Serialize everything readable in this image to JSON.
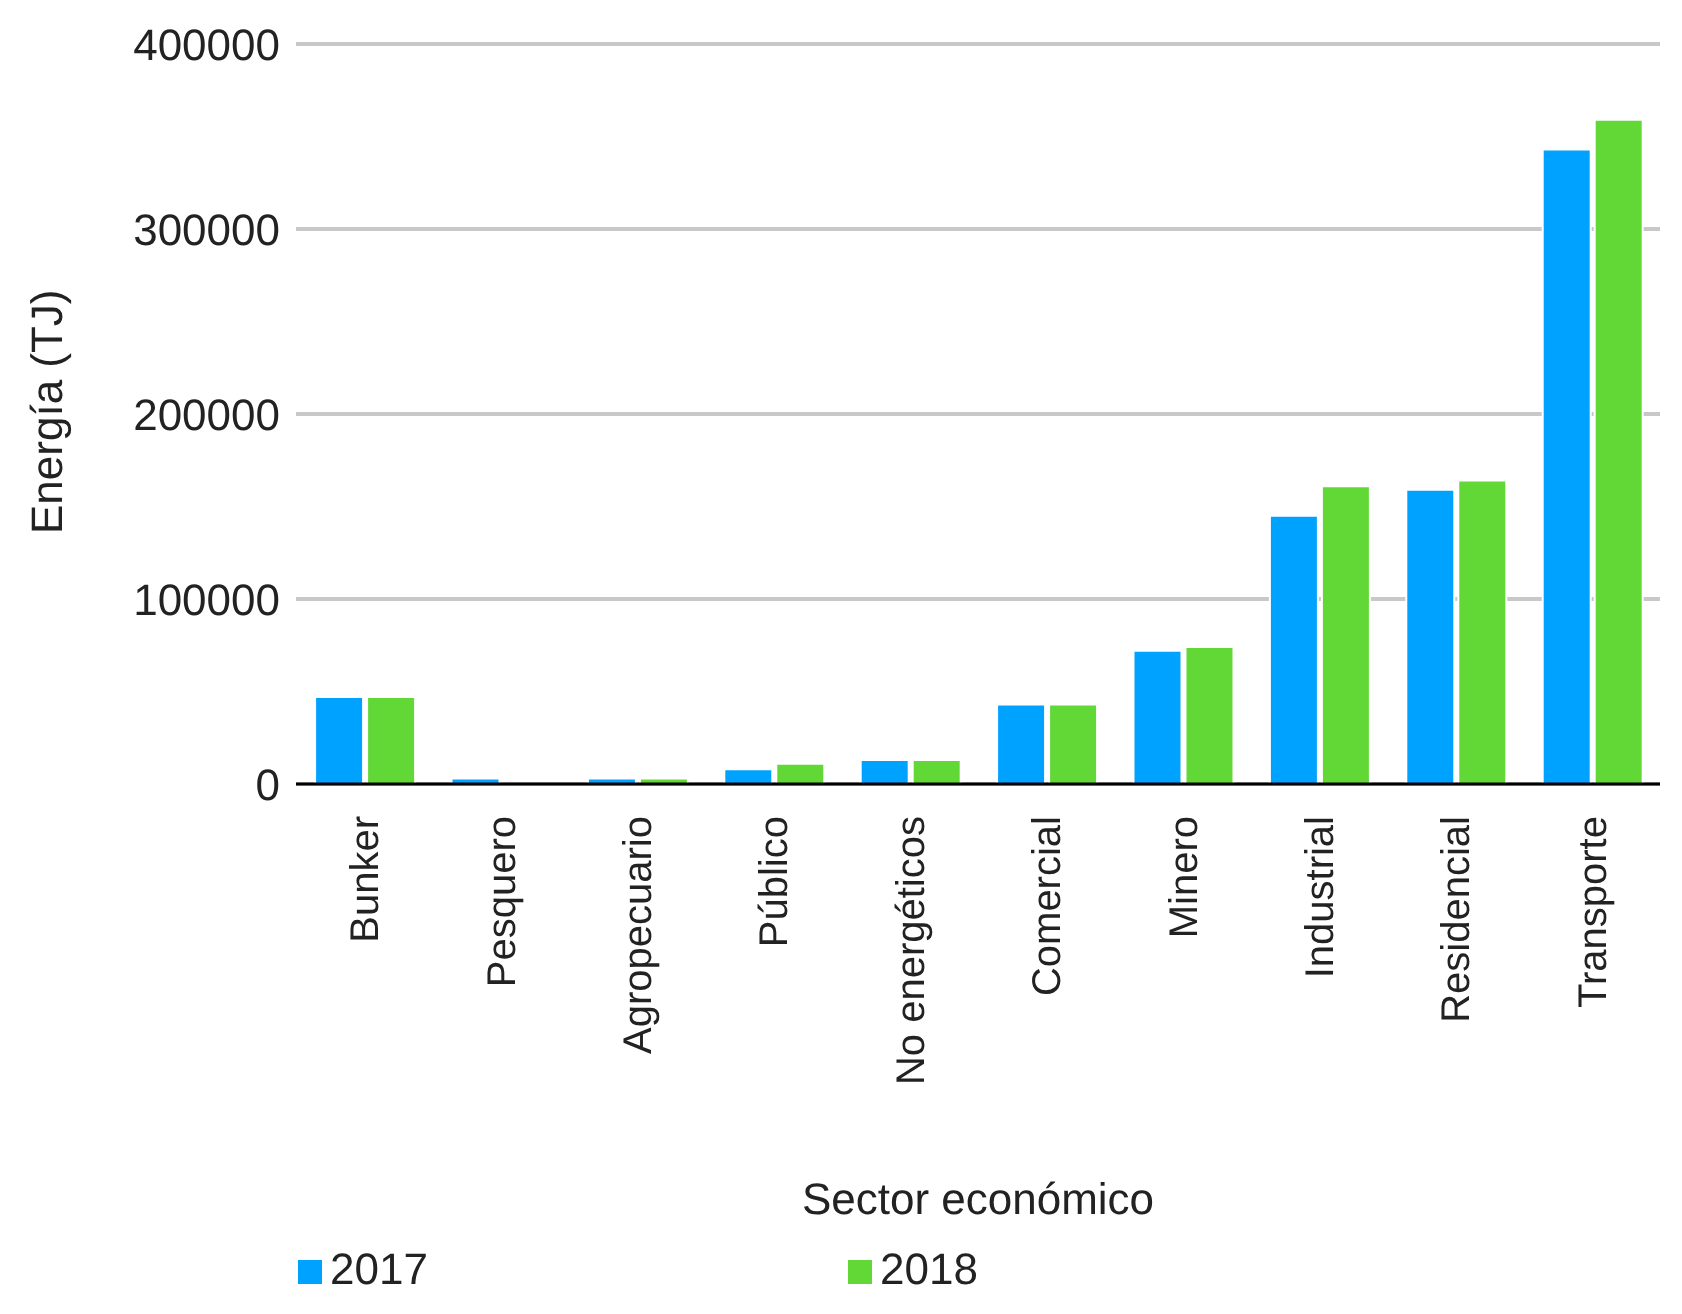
{
  "chart_data": {
    "type": "bar",
    "xlabel": "Sector económico",
    "ylabel": "Energía (TJ)",
    "categories": [
      "Bunker",
      "Pesquero",
      "Agropecuario",
      "Público",
      "No energéticos",
      "Comercial",
      "Minero",
      "Industrial",
      "Residencial",
      "Transporte"
    ],
    "series": [
      {
        "name": "2017",
        "color": "#00a2ff",
        "values": [
          47000,
          3000,
          3000,
          8000,
          13000,
          43000,
          72000,
          145000,
          159000,
          343000
        ]
      },
      {
        "name": "2018",
        "color": "#62d836",
        "values": [
          47000,
          null,
          3000,
          11000,
          13000,
          43000,
          74000,
          161000,
          164000,
          359000
        ]
      }
    ],
    "ylim": [
      0,
      400000
    ],
    "yticks": [
      0,
      100000,
      200000,
      300000,
      400000
    ],
    "grid": "y",
    "legend": "bottom"
  }
}
